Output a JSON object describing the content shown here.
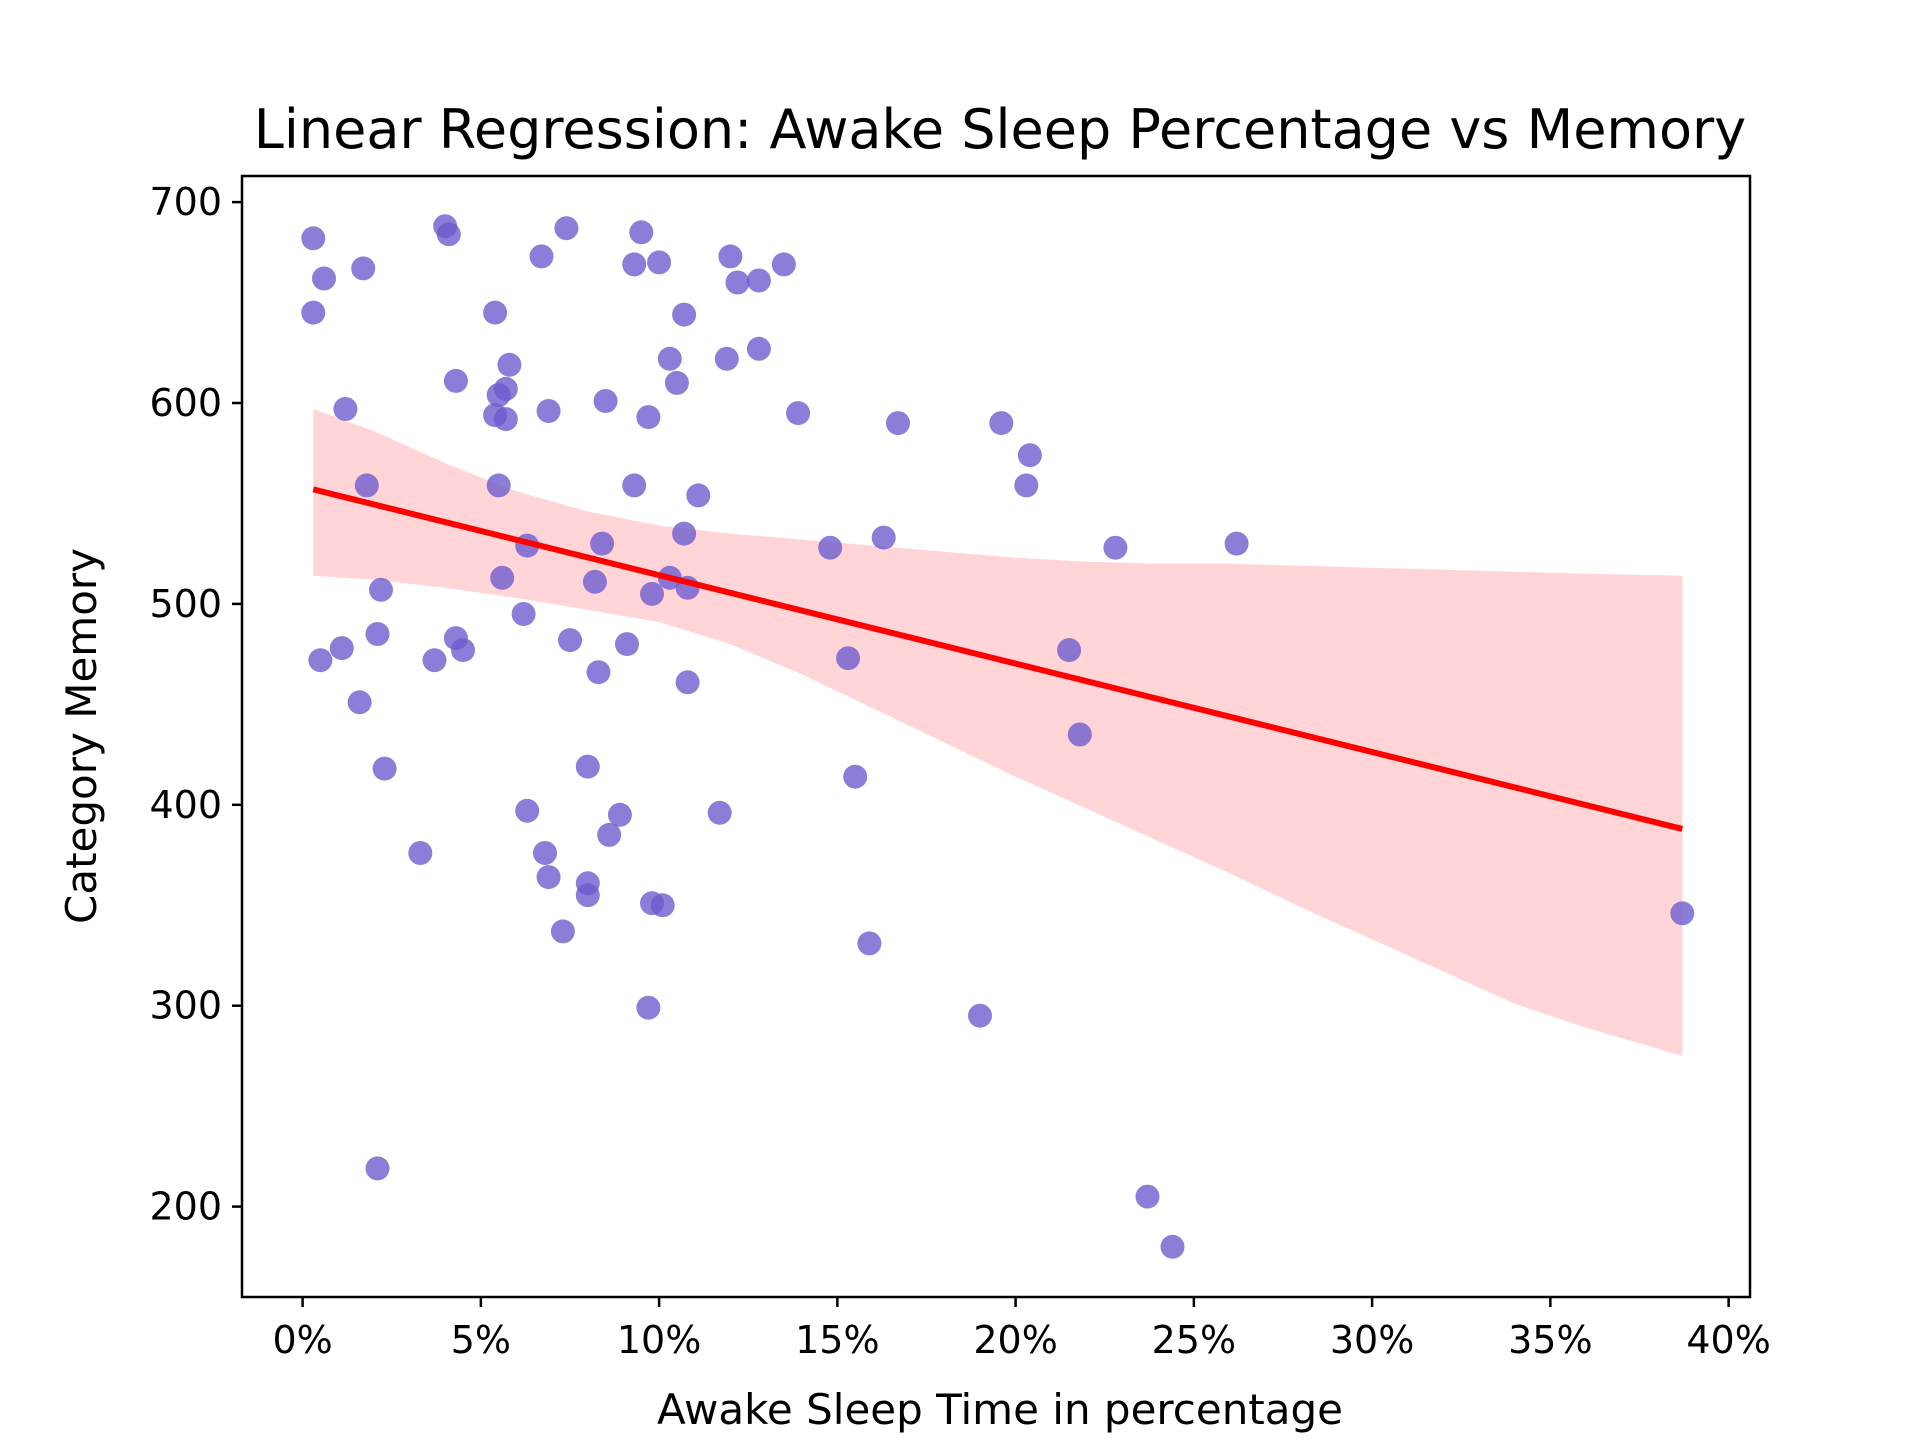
{
  "chart_data": {
    "type": "scatter",
    "title": "Linear Regression: Awake Sleep Percentage vs Memory",
    "xlabel": "Awake Sleep Time in percentage",
    "ylabel": "Category Memory",
    "xlim": [
      -1.7,
      40.6
    ],
    "ylim": [
      155,
      713
    ],
    "xticks": [
      0,
      5,
      10,
      15,
      20,
      25,
      30,
      35,
      40
    ],
    "xtick_labels": [
      "0%",
      "5%",
      "10%",
      "15%",
      "20%",
      "25%",
      "30%",
      "35%",
      "40%"
    ],
    "yticks": [
      200,
      300,
      400,
      500,
      600,
      700
    ],
    "ytick_labels": [
      "200",
      "300",
      "400",
      "500",
      "600",
      "700"
    ],
    "grid": false,
    "legend": "none",
    "colors": {
      "points": "#6a5acd",
      "regression_line": "#ff0000",
      "confidence_band": "#ffb3b8"
    },
    "series": [
      {
        "kind": "points",
        "x": [
          0.3,
          0.3,
          0.6,
          0.5,
          1.1,
          1.2,
          1.6,
          1.7,
          1.8,
          2.1,
          2.1,
          2.2,
          2.3,
          3.3,
          3.7,
          4.0,
          4.1,
          4.3,
          4.3,
          4.5,
          5.4,
          5.4,
          5.5,
          5.5,
          5.6,
          5.7,
          5.7,
          5.8,
          6.2,
          6.3,
          6.3,
          6.7,
          6.8,
          6.9,
          6.9,
          7.3,
          7.4,
          7.5,
          8.0,
          8.0,
          8.0,
          8.2,
          8.3,
          8.4,
          8.5,
          8.6,
          8.9,
          9.1,
          9.3,
          9.3,
          9.5,
          9.7,
          9.7,
          9.8,
          9.8,
          10.0,
          10.1,
          10.3,
          10.3,
          10.5,
          10.7,
          10.7,
          10.8,
          10.8,
          11.1,
          11.7,
          11.9,
          12.0,
          12.2,
          12.8,
          12.8,
          13.5,
          13.9,
          14.8,
          15.3,
          15.5,
          15.9,
          16.3,
          16.7,
          19.0,
          19.6,
          20.3,
          20.4,
          21.5,
          21.8,
          22.8,
          23.7,
          24.4,
          26.2,
          38.7
        ],
        "y": [
          682,
          645,
          662,
          472,
          478,
          597,
          451,
          667,
          559,
          485,
          219,
          507,
          418,
          376,
          472,
          688,
          684,
          611,
          483,
          477,
          645,
          594,
          604,
          559,
          513,
          607,
          592,
          619,
          495,
          529,
          397,
          673,
          376,
          364,
          596,
          337,
          687,
          482,
          419,
          361,
          355,
          511,
          466,
          530,
          601,
          385,
          395,
          480,
          669,
          559,
          685,
          593,
          299,
          505,
          351,
          670,
          350,
          622,
          513,
          610,
          644,
          535,
          508,
          461,
          554,
          396,
          622,
          673,
          660,
          661,
          627,
          669,
          595,
          528,
          473,
          414,
          331,
          533,
          590,
          295,
          590,
          559,
          574,
          477,
          435,
          528,
          205,
          180,
          530,
          346
        ]
      },
      {
        "kind": "regression_line",
        "x": [
          0.3,
          38.7
        ],
        "y": [
          557,
          388
        ]
      },
      {
        "kind": "confidence_band",
        "x": [
          0.3,
          2.0,
          4.0,
          6.0,
          8.0,
          10.0,
          12.0,
          14.0,
          16.0,
          18.0,
          20.0,
          22.0,
          24.0,
          26.0,
          28.0,
          30.0,
          32.0,
          34.0,
          36.0,
          38.7
        ],
        "upper": [
          597,
          586,
          570,
          556,
          546,
          539,
          535,
          532,
          529,
          526,
          523,
          521,
          520,
          520,
          519,
          518,
          517,
          516,
          515,
          514
        ],
        "lower": [
          514,
          512,
          508,
          503,
          497,
          491,
          480,
          465,
          448,
          431,
          414,
          398,
          382,
          366,
          349,
          333,
          317,
          301,
          289,
          275
        ]
      }
    ]
  }
}
